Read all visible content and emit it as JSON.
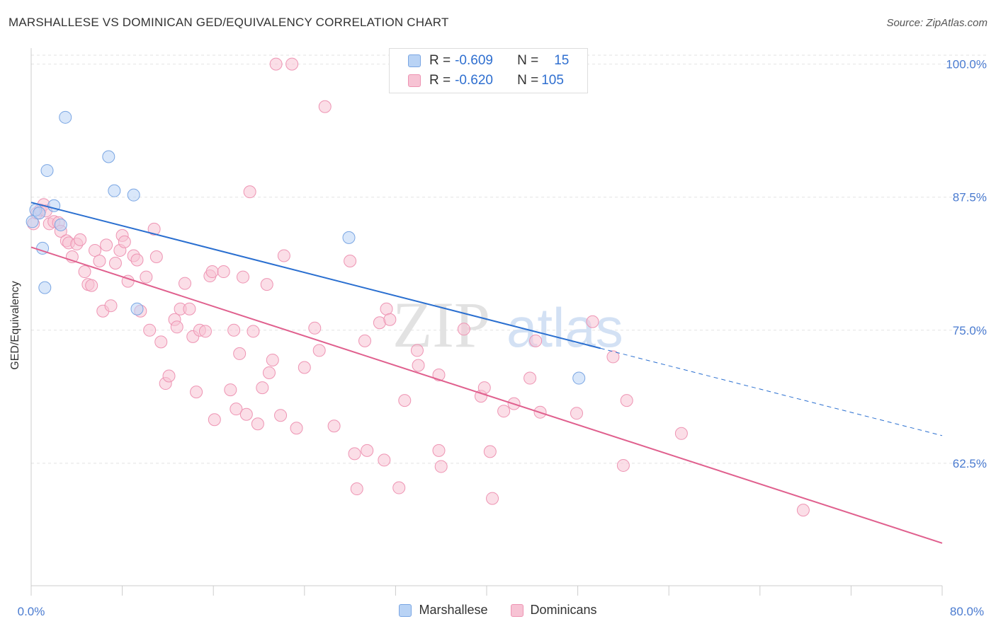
{
  "header": {
    "title": "MARSHALLESE VS DOMINICAN GED/EQUIVALENCY CORRELATION CHART",
    "source": "Source: ZipAtlas.com"
  },
  "legend": {
    "rows": [
      {
        "r_label": "R = ",
        "r_value": "-0.609",
        "n_label": "N = ",
        "n_value": "15"
      },
      {
        "r_label": "R = ",
        "r_value": "-0.620",
        "n_label": "N = ",
        "n_value": "105"
      }
    ]
  },
  "bottom_legend": [
    "Marshallese",
    "Dominicans"
  ],
  "watermark": {
    "zip": "ZIP",
    "atlas": "atlas"
  },
  "colors": {
    "marshallese_fill": "#b9d3f5",
    "marshallese_stroke": "#7aa6e3",
    "marshallese_line": "#2a6fd0",
    "dominican_fill": "#f7c3d4",
    "dominican_stroke": "#ee94b3",
    "dominican_line": "#e0608e",
    "tick_label": "#4a7bd0",
    "grid": "#e2e2e2"
  },
  "chart_data": {
    "type": "scatter",
    "title": "MARSHALLESE VS DOMINICAN GED/EQUIVALENCY CORRELATION CHART",
    "xlabel": "",
    "ylabel": "GED/Equivalency",
    "xlim": [
      0,
      80
    ],
    "ylim": [
      51,
      101.5
    ],
    "x_tick_labels": [
      "0.0%",
      "80.0%"
    ],
    "y_ticks": [
      62.5,
      75.0,
      87.5,
      100.0
    ],
    "y_tick_labels": [
      "62.5%",
      "75.0%",
      "87.5%",
      "100.0%"
    ],
    "grid": true,
    "legend_position": "top-center",
    "series": [
      {
        "name": "Marshallese",
        "R": -0.609,
        "N": 15,
        "trend": {
          "x0": 0,
          "y0": 87.0,
          "x1": 50,
          "y1": 73.3,
          "dashed_to_x": 80,
          "dashed_to_y": 65.1
        },
        "points": [
          [
            0.1,
            85.2
          ],
          [
            0.4,
            86.3
          ],
          [
            0.7,
            86.0
          ],
          [
            1.0,
            82.7
          ],
          [
            1.2,
            79.0
          ],
          [
            1.4,
            90.0
          ],
          [
            2.0,
            86.7
          ],
          [
            2.6,
            84.9
          ],
          [
            3.0,
            95.0
          ],
          [
            6.8,
            91.3
          ],
          [
            7.3,
            88.1
          ],
          [
            9.0,
            87.7
          ],
          [
            9.3,
            77.0
          ],
          [
            27.9,
            83.7
          ],
          [
            48.1,
            70.5
          ]
        ]
      },
      {
        "name": "Dominicans",
        "R": -0.62,
        "N": 105,
        "trend": {
          "x0": 0,
          "y0": 82.8,
          "x1": 80,
          "y1": 55.0
        },
        "points": [
          [
            0.2,
            85.0
          ],
          [
            0.5,
            86.0
          ],
          [
            0.8,
            86.3
          ],
          [
            1.1,
            86.8
          ],
          [
            1.3,
            86.2
          ],
          [
            1.6,
            85.0
          ],
          [
            2.0,
            85.2
          ],
          [
            2.4,
            85.1
          ],
          [
            2.6,
            84.3
          ],
          [
            3.1,
            83.4
          ],
          [
            3.3,
            83.2
          ],
          [
            3.6,
            81.9
          ],
          [
            4.0,
            83.1
          ],
          [
            4.3,
            83.5
          ],
          [
            4.7,
            80.5
          ],
          [
            5.0,
            79.3
          ],
          [
            5.3,
            79.2
          ],
          [
            5.6,
            82.5
          ],
          [
            6.0,
            81.5
          ],
          [
            6.3,
            76.8
          ],
          [
            6.6,
            83.0
          ],
          [
            7.0,
            77.3
          ],
          [
            7.4,
            81.3
          ],
          [
            7.8,
            82.5
          ],
          [
            8.0,
            83.9
          ],
          [
            8.2,
            83.3
          ],
          [
            8.5,
            79.6
          ],
          [
            9.0,
            82.0
          ],
          [
            9.3,
            81.6
          ],
          [
            9.6,
            76.8
          ],
          [
            10.1,
            80.0
          ],
          [
            10.4,
            75.0
          ],
          [
            10.8,
            84.5
          ],
          [
            11.0,
            81.9
          ],
          [
            11.4,
            73.9
          ],
          [
            11.8,
            70.0
          ],
          [
            12.1,
            70.7
          ],
          [
            12.6,
            76.0
          ],
          [
            12.8,
            75.3
          ],
          [
            13.1,
            77.0
          ],
          [
            13.5,
            79.4
          ],
          [
            13.9,
            77.0
          ],
          [
            14.2,
            74.4
          ],
          [
            14.5,
            69.2
          ],
          [
            14.8,
            75.0
          ],
          [
            15.3,
            74.9
          ],
          [
            15.7,
            80.1
          ],
          [
            15.9,
            80.5
          ],
          [
            16.1,
            66.6
          ],
          [
            16.9,
            80.5
          ],
          [
            17.5,
            69.4
          ],
          [
            17.8,
            75.0
          ],
          [
            18.0,
            67.6
          ],
          [
            18.3,
            72.8
          ],
          [
            18.6,
            80.0
          ],
          [
            18.9,
            67.1
          ],
          [
            19.2,
            88.0
          ],
          [
            19.5,
            74.9
          ],
          [
            19.9,
            66.2
          ],
          [
            20.3,
            69.6
          ],
          [
            20.7,
            79.3
          ],
          [
            20.9,
            71.0
          ],
          [
            21.2,
            72.2
          ],
          [
            21.5,
            100.0
          ],
          [
            21.9,
            67.0
          ],
          [
            22.2,
            82.0
          ],
          [
            22.9,
            100.0
          ],
          [
            23.3,
            65.8
          ],
          [
            24.0,
            71.5
          ],
          [
            24.9,
            75.2
          ],
          [
            25.3,
            73.1
          ],
          [
            25.8,
            96.0
          ],
          [
            26.6,
            66.0
          ],
          [
            28.0,
            81.5
          ],
          [
            28.4,
            63.4
          ],
          [
            28.6,
            60.1
          ],
          [
            29.3,
            74.0
          ],
          [
            29.5,
            63.7
          ],
          [
            30.6,
            75.7
          ],
          [
            31.0,
            62.8
          ],
          [
            31.2,
            77.0
          ],
          [
            31.5,
            76.0
          ],
          [
            32.3,
            60.2
          ],
          [
            32.8,
            68.4
          ],
          [
            33.9,
            73.1
          ],
          [
            34.0,
            71.7
          ],
          [
            35.8,
            63.7
          ],
          [
            36.0,
            62.2
          ],
          [
            35.8,
            70.8
          ],
          [
            38.0,
            75.1
          ],
          [
            39.5,
            68.8
          ],
          [
            39.8,
            69.6
          ],
          [
            40.3,
            63.6
          ],
          [
            40.5,
            59.2
          ],
          [
            41.5,
            67.4
          ],
          [
            42.4,
            68.1
          ],
          [
            43.8,
            70.5
          ],
          [
            44.3,
            74.0
          ],
          [
            44.7,
            67.3
          ],
          [
            47.9,
            67.2
          ],
          [
            49.3,
            75.8
          ],
          [
            51.1,
            72.5
          ],
          [
            52.0,
            62.3
          ],
          [
            52.3,
            68.4
          ],
          [
            57.1,
            65.3
          ],
          [
            67.8,
            58.1
          ]
        ]
      }
    ]
  }
}
